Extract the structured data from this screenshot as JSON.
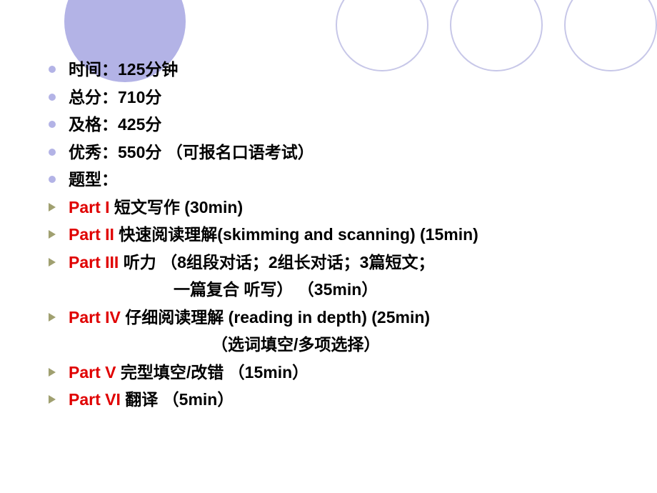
{
  "circles": {
    "filled_color": "#b3b3e6",
    "outline_color": "#c7c7e8"
  },
  "info": {
    "time": "时间：125分钟",
    "total": "总分：710分",
    "pass": "及格：425分",
    "excellent": "优秀：550分 （可报名口语考试）",
    "qtype": "题型："
  },
  "parts": {
    "p1_label": "Part I",
    "p1_text": "   短文写作  (30min)",
    "p2_label": "Part II",
    "p2_text": "   快速阅读理解(skimming and scanning) (15min)",
    "p3_label": "Part III",
    "p3_text": "  听力 （8组段对话；2组长对话；3篇短文；",
    "p3_cont": "一篇复合 听写）    （35min）",
    "p4_label": "Part IV",
    "p4_text": "  仔细阅读理解 (reading in depth)   (25min)",
    "p4_cont": "（选词填空/多项选择）",
    "p5_label": "Part V",
    "p5_text": "   完型填空/改错     （15min）",
    "p6_label": "Part VI",
    "p6_text": " 翻译   （5min）"
  },
  "style": {
    "font_size_pt": 17,
    "text_color": "#000000",
    "highlight_color": "#e00000",
    "bullet_dot_color": "#b3b3e6",
    "bullet_arrow_color": "#a0a070",
    "background_color": "#ffffff"
  }
}
